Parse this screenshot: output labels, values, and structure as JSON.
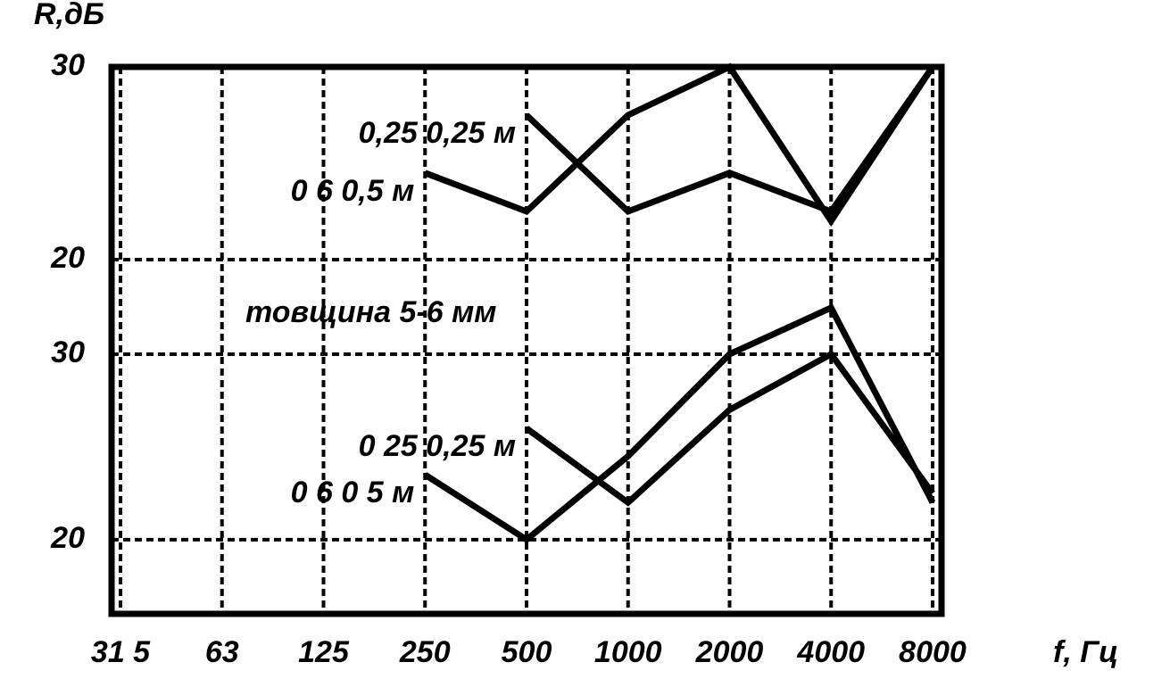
{
  "chart_data": {
    "type": "line",
    "ylabel": "R,дБ",
    "xlabel": "f, Гц",
    "categories": [
      "31 5",
      "63",
      "125",
      "250",
      "500",
      "1000",
      "2000",
      "4000",
      "8000"
    ],
    "annotation": "товщина 5-6 мм",
    "grid": true,
    "panels": [
      {
        "ylim": [
          17.5,
          30
        ],
        "yticks": [
          20,
          30
        ],
        "series": [
          {
            "name": "0,25  0,25  м",
            "color": "#000000",
            "values": [
              null,
              null,
              null,
              null,
              27.5,
              22.5,
              24.5,
              22.5,
              30
            ]
          },
          {
            "name": "0 6  0,5  м",
            "color": "#000000",
            "values": [
              null,
              null,
              null,
              24.5,
              22.5,
              27.5,
              30,
              22,
              30
            ]
          }
        ]
      },
      {
        "ylim": [
          16,
          32.5
        ],
        "yticks": [
          20,
          30
        ],
        "series": [
          {
            "name": "0 25  0,25  м",
            "color": "#000000",
            "values": [
              null,
              null,
              null,
              null,
              26,
              22,
              27,
              30,
              22.5
            ]
          },
          {
            "name": "0 6  0 5  м",
            "color": "#000000",
            "values": [
              null,
              null,
              null,
              23.5,
              20,
              24.5,
              30,
              32.5,
              22
            ]
          }
        ]
      }
    ]
  }
}
